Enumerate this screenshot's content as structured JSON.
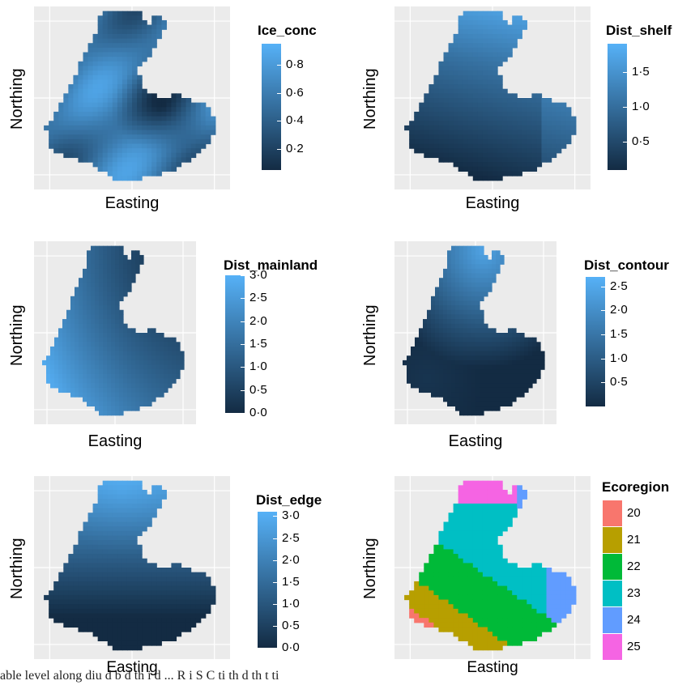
{
  "caption_fragment": "able level along diu  d b d th    i d   ...   R  i  S  C   ti    th  d th  t  ti",
  "colors": {
    "panel_bg": "#ebebeb",
    "grid": "#ffffff",
    "gradient_low": "#132b43",
    "gradient_high": "#56b1f7"
  },
  "chart_data": [
    {
      "type": "heatmap",
      "name": "Ice_conc",
      "xlabel": "Easting",
      "ylabel": "Northing",
      "legend_title": "Ice_conc",
      "legend_ticks": [
        "0·8",
        "0·6",
        "0·4",
        "0·2"
      ],
      "legend_values": [
        0.8,
        0.6,
        0.4,
        0.2
      ],
      "range": [
        0.05,
        0.95
      ]
    },
    {
      "type": "heatmap",
      "name": "Dist_shelf",
      "xlabel": "Easting",
      "ylabel": "Northing",
      "legend_title": "Dist_shelf",
      "legend_ticks": [
        "1·5",
        "1·0",
        "0·5"
      ],
      "legend_values": [
        1.5,
        1.0,
        0.5
      ],
      "range": [
        0.1,
        1.9
      ]
    },
    {
      "type": "heatmap",
      "name": "Dist_mainland",
      "xlabel": "Easting",
      "ylabel": "Northing",
      "legend_title": "Dist_mainland",
      "legend_ticks": [
        "3·0",
        "2·5",
        "2·0",
        "1·5",
        "1·0",
        "0·5",
        "0·0"
      ],
      "legend_values": [
        3.0,
        2.5,
        2.0,
        1.5,
        1.0,
        0.5,
        0.0
      ],
      "range": [
        0.0,
        3.0
      ]
    },
    {
      "type": "heatmap",
      "name": "Dist_contour",
      "xlabel": "Easting",
      "ylabel": "Northing",
      "legend_title": "Dist_contour",
      "legend_ticks": [
        "2·5",
        "2·0",
        "1·5",
        "1·0",
        "0·5"
      ],
      "legend_values": [
        2.5,
        2.0,
        1.5,
        1.0,
        0.5
      ],
      "range": [
        0.0,
        2.7
      ]
    },
    {
      "type": "heatmap",
      "name": "Dist_edge",
      "xlabel": "Easting",
      "ylabel": "Northing",
      "legend_title": "Dist_edge",
      "legend_ticks": [
        "3·0",
        "2·5",
        "2·0",
        "1·5",
        "1·0",
        "0·5",
        "0·0"
      ],
      "legend_values": [
        3.0,
        2.5,
        2.0,
        1.5,
        1.0,
        0.5,
        0.0
      ],
      "range": [
        0.0,
        3.1
      ]
    },
    {
      "type": "heatmap",
      "name": "Ecoregion",
      "xlabel": "Easting",
      "ylabel": "Northing",
      "legend_title": "Ecoregion",
      "categories": [
        "20",
        "21",
        "22",
        "23",
        "24",
        "25"
      ],
      "category_colors": [
        "#f8766d",
        "#b79f00",
        "#00ba38",
        "#00bfc4",
        "#619cff",
        "#f564e3"
      ]
    }
  ]
}
